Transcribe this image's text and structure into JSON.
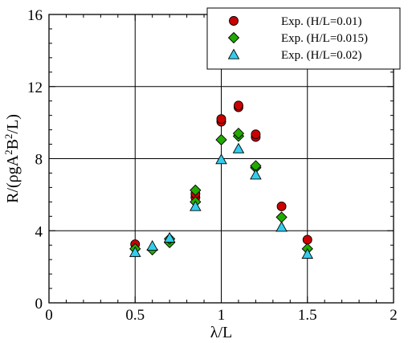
{
  "chart_data": {
    "type": "scatter",
    "title": "",
    "xlabel": "λ/L",
    "ylabel_parts": [
      "R/(ρgA",
      "2",
      "B",
      "2",
      "/L)"
    ],
    "xlim": [
      0,
      2
    ],
    "ylim": [
      0,
      16
    ],
    "xticks": [
      0,
      0.5,
      1,
      1.5,
      2
    ],
    "xtick_labels": [
      "0",
      "0.5",
      "1",
      "1.5",
      "2"
    ],
    "yticks": [
      0,
      4,
      8,
      12,
      16
    ],
    "ytick_labels": [
      "0",
      "4",
      "8",
      "12",
      "16"
    ],
    "grid": true,
    "legend_position": "top-right",
    "series": [
      {
        "name": "Exp. (H/L=0.01)",
        "marker": "circle",
        "color": "#cc0000",
        "points": [
          [
            0.5,
            3.25
          ],
          [
            0.85,
            5.85
          ],
          [
            0.85,
            6.05
          ],
          [
            1.0,
            10.05
          ],
          [
            1.0,
            10.2
          ],
          [
            1.1,
            10.85
          ],
          [
            1.1,
            10.95
          ],
          [
            1.2,
            9.2
          ],
          [
            1.2,
            9.35
          ],
          [
            1.35,
            5.35
          ],
          [
            1.5,
            3.5
          ]
        ]
      },
      {
        "name": "Exp. (H/L=0.015)",
        "marker": "diamond",
        "color": "#22aa00",
        "points": [
          [
            0.5,
            3.0
          ],
          [
            0.6,
            2.95
          ],
          [
            0.7,
            3.35
          ],
          [
            0.7,
            3.55
          ],
          [
            0.85,
            5.6
          ],
          [
            0.85,
            6.25
          ],
          [
            1.0,
            9.05
          ],
          [
            1.1,
            9.25
          ],
          [
            1.1,
            9.4
          ],
          [
            1.2,
            7.5
          ],
          [
            1.2,
            7.6
          ],
          [
            1.35,
            4.75
          ],
          [
            1.5,
            3.0
          ]
        ]
      },
      {
        "name": "Exp. (H/L=0.02)",
        "marker": "triangle",
        "color": "#33ccee",
        "points": [
          [
            0.5,
            2.8
          ],
          [
            0.6,
            3.15
          ],
          [
            0.7,
            3.6
          ],
          [
            0.85,
            5.35
          ],
          [
            1.0,
            7.95
          ],
          [
            1.1,
            8.55
          ],
          [
            1.2,
            7.1
          ],
          [
            1.35,
            4.2
          ],
          [
            1.5,
            2.7
          ]
        ]
      }
    ]
  }
}
